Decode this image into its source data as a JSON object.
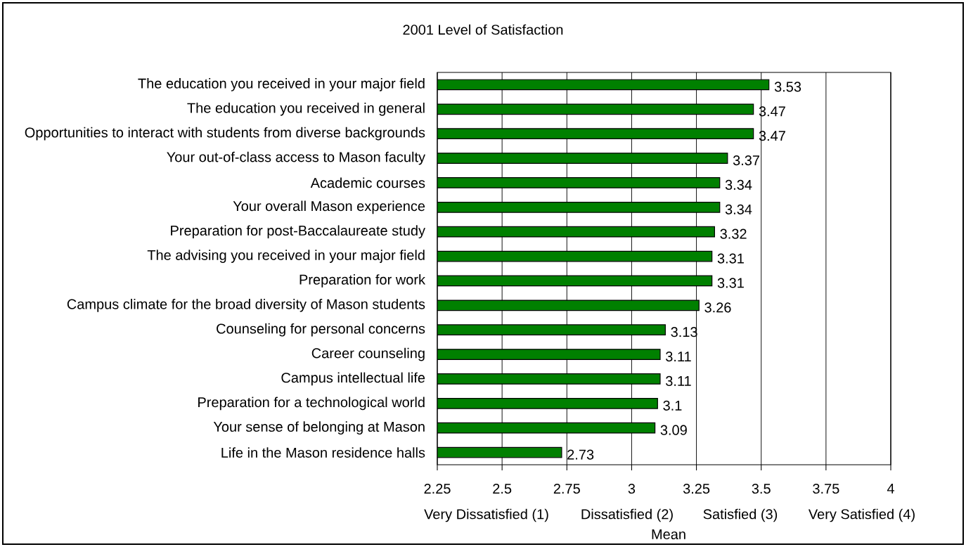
{
  "chart_data": {
    "type": "bar",
    "orientation": "horizontal",
    "title": "2001 Level of Satisfaction",
    "xlabel": "Mean",
    "annotations": [
      "Very Dissatisfied (1)",
      "Dissatisfied (2)",
      "Satisfied (3)",
      "Very Satisfied (4)"
    ],
    "categories": [
      "The education you received in your major field",
      "The education you received in general",
      "Opportunities to interact with students from diverse backgrounds",
      "Your out-of-class access to Mason faculty",
      "Academic courses",
      "Your overall Mason experience",
      "Preparation for post-Baccalaureate study",
      "The advising you received in your major field",
      "Preparation for work",
      "Campus climate for the broad diversity of Mason students",
      "Counseling for personal concerns",
      "Career counseling",
      "Campus intellectual life",
      "Preparation for a technological world",
      "Your sense of belonging at Mason",
      "Life in the Mason residence halls"
    ],
    "values": [
      3.53,
      3.47,
      3.47,
      3.37,
      3.34,
      3.34,
      3.32,
      3.31,
      3.31,
      3.26,
      3.13,
      3.11,
      3.11,
      3.1,
      3.09,
      2.73
    ],
    "color": "#008000",
    "xlim": [
      2.25,
      4
    ],
    "xticks": [
      2.25,
      2.5,
      2.75,
      3,
      3.25,
      3.5,
      3.75,
      4
    ],
    "grid": "x",
    "data_labels": true
  }
}
